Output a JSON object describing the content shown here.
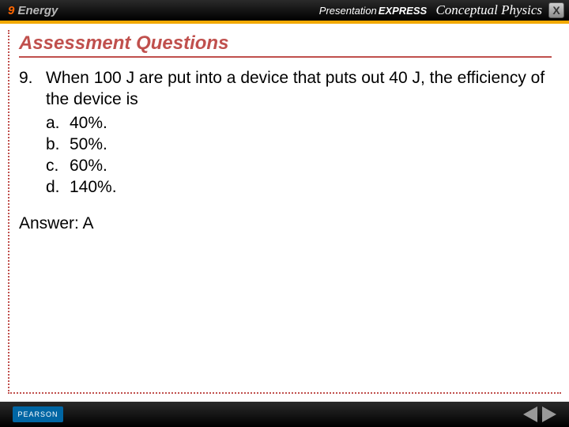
{
  "header": {
    "chapter_number": "9",
    "chapter_title": "Energy",
    "brand_prefix": "Presentation",
    "brand_express": "EXPRESS",
    "book_title": "Conceptual Physics",
    "close_label": "X"
  },
  "content": {
    "section_title": "Assessment Questions",
    "question_number": "9.",
    "question_text": "When 100 J are put into a device that puts out 40 J, the efficiency of the device is",
    "options": [
      {
        "letter": "a.",
        "text": "40%."
      },
      {
        "letter": "b.",
        "text": "50%."
      },
      {
        "letter": "c.",
        "text": "60%."
      },
      {
        "letter": "d.",
        "text": "140%."
      }
    ],
    "answer_label": "Answer:",
    "answer_value": "A"
  },
  "footer": {
    "publisher": "PEARSON"
  },
  "colors": {
    "accent": "#c0504d",
    "topbar": "#000000",
    "brand_orange": "#ff6600",
    "yellow_line": "#f2a900",
    "pearson_blue": "#0066a4"
  }
}
